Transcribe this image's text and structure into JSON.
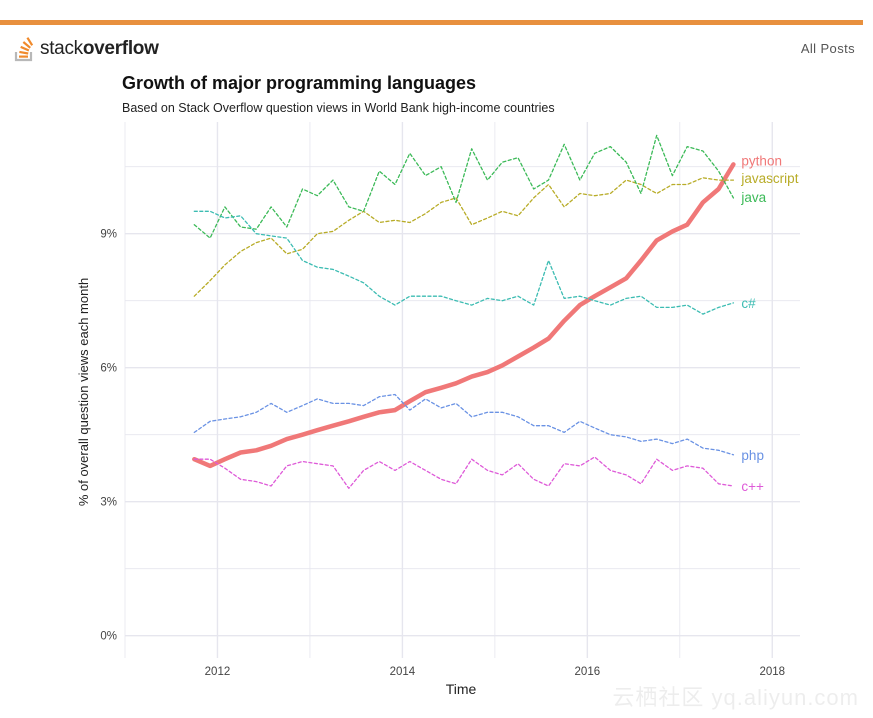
{
  "header": {
    "logo_text_light": "stack",
    "logo_text_bold": "overflow",
    "all_posts": "All Posts"
  },
  "watermark": "云栖社区 yq.aliyun.com",
  "chart_data": {
    "type": "line",
    "title": "Growth of major programming languages",
    "subtitle": "Based on Stack Overflow question views in World Bank high-income countries",
    "xlabel": "Time",
    "ylabel": "% of overall question views each month",
    "xlim": [
      2011.0,
      2018.3
    ],
    "ylim": [
      -0.5,
      11.5
    ],
    "xticks": [
      2012,
      2014,
      2016,
      2018
    ],
    "xtick_labels": [
      "2012",
      "2014",
      "2016",
      "2018"
    ],
    "yticks": [
      0,
      3,
      6,
      9
    ],
    "ytick_labels": [
      "0%",
      "3%",
      "6%",
      "9%"
    ],
    "grid": true,
    "legend": "direct labels at line ends (right)",
    "colors": {
      "python": "#f07878",
      "javascript": "#b8ac28",
      "java": "#3cba58",
      "csharp": "#3cbcb2",
      "php": "#6a92e4",
      "cpp": "#de5ad8",
      "grid": "#e6e6ee",
      "axis_text": "#444444"
    },
    "series": [
      {
        "name": "python",
        "label": "python",
        "color_key": "python",
        "x": [
          2011.75,
          2011.92,
          2012.08,
          2012.25,
          2012.42,
          2012.58,
          2012.75,
          2012.92,
          2013.08,
          2013.25,
          2013.42,
          2013.58,
          2013.75,
          2013.92,
          2014.08,
          2014.25,
          2014.42,
          2014.58,
          2014.75,
          2014.92,
          2015.08,
          2015.25,
          2015.42,
          2015.58,
          2015.75,
          2015.92,
          2016.08,
          2016.25,
          2016.42,
          2016.58,
          2016.75,
          2016.92,
          2017.08,
          2017.25,
          2017.42,
          2017.58
        ],
        "values": [
          3.95,
          3.8,
          3.95,
          4.1,
          4.15,
          4.25,
          4.4,
          4.5,
          4.6,
          4.7,
          4.8,
          4.9,
          5.0,
          5.05,
          5.25,
          5.45,
          5.55,
          5.65,
          5.8,
          5.9,
          6.05,
          6.25,
          6.45,
          6.65,
          7.05,
          7.4,
          7.6,
          7.8,
          8.0,
          8.4,
          8.85,
          9.05,
          9.2,
          9.7,
          10.0,
          10.55
        ]
      },
      {
        "name": "javascript",
        "label": "javascript",
        "color_key": "javascript",
        "x": [
          2011.75,
          2011.92,
          2012.08,
          2012.25,
          2012.42,
          2012.58,
          2012.75,
          2012.92,
          2013.08,
          2013.25,
          2013.42,
          2013.58,
          2013.75,
          2013.92,
          2014.08,
          2014.25,
          2014.42,
          2014.58,
          2014.75,
          2014.92,
          2015.08,
          2015.25,
          2015.42,
          2015.58,
          2015.75,
          2015.92,
          2016.08,
          2016.25,
          2016.42,
          2016.58,
          2016.75,
          2016.92,
          2017.08,
          2017.25,
          2017.42,
          2017.58
        ],
        "values": [
          7.6,
          7.95,
          8.3,
          8.6,
          8.8,
          8.9,
          8.55,
          8.65,
          9.0,
          9.05,
          9.3,
          9.5,
          9.25,
          9.3,
          9.25,
          9.45,
          9.7,
          9.8,
          9.2,
          9.35,
          9.5,
          9.4,
          9.8,
          10.1,
          9.6,
          9.9,
          9.85,
          9.9,
          10.2,
          10.1,
          9.9,
          10.1,
          10.1,
          10.25,
          10.2,
          10.2
        ]
      },
      {
        "name": "java",
        "label": "java",
        "color_key": "java",
        "x": [
          2011.75,
          2011.92,
          2012.08,
          2012.25,
          2012.42,
          2012.58,
          2012.75,
          2012.92,
          2013.08,
          2013.25,
          2013.42,
          2013.58,
          2013.75,
          2013.92,
          2014.08,
          2014.25,
          2014.42,
          2014.58,
          2014.75,
          2014.92,
          2015.08,
          2015.25,
          2015.42,
          2015.58,
          2015.75,
          2015.92,
          2016.08,
          2016.25,
          2016.42,
          2016.58,
          2016.75,
          2016.92,
          2017.08,
          2017.25,
          2017.42,
          2017.58
        ],
        "values": [
          9.2,
          8.9,
          9.6,
          9.15,
          9.1,
          9.6,
          9.15,
          10.0,
          9.85,
          10.2,
          9.6,
          9.5,
          10.4,
          10.1,
          10.8,
          10.3,
          10.5,
          9.7,
          10.9,
          10.2,
          10.6,
          10.7,
          10.0,
          10.2,
          11.0,
          10.2,
          10.8,
          10.95,
          10.6,
          9.9,
          11.2,
          10.3,
          10.95,
          10.85,
          10.4,
          9.8
        ]
      },
      {
        "name": "csharp",
        "label": "c#",
        "color_key": "csharp",
        "x": [
          2011.75,
          2011.92,
          2012.08,
          2012.25,
          2012.42,
          2012.58,
          2012.75,
          2012.92,
          2013.08,
          2013.25,
          2013.42,
          2013.58,
          2013.75,
          2013.92,
          2014.08,
          2014.25,
          2014.42,
          2014.58,
          2014.75,
          2014.92,
          2015.08,
          2015.25,
          2015.42,
          2015.58,
          2015.75,
          2015.92,
          2016.08,
          2016.25,
          2016.42,
          2016.58,
          2016.75,
          2016.92,
          2017.08,
          2017.25,
          2017.42,
          2017.58
        ],
        "values": [
          9.5,
          9.5,
          9.35,
          9.4,
          9.0,
          8.95,
          8.9,
          8.4,
          8.25,
          8.2,
          8.05,
          7.9,
          7.6,
          7.4,
          7.6,
          7.6,
          7.6,
          7.5,
          7.4,
          7.55,
          7.5,
          7.6,
          7.4,
          8.4,
          7.55,
          7.6,
          7.5,
          7.4,
          7.55,
          7.6,
          7.35,
          7.35,
          7.4,
          7.2,
          7.35,
          7.45
        ]
      },
      {
        "name": "php",
        "label": "php",
        "color_key": "php",
        "x": [
          2011.75,
          2011.92,
          2012.08,
          2012.25,
          2012.42,
          2012.58,
          2012.75,
          2012.92,
          2013.08,
          2013.25,
          2013.42,
          2013.58,
          2013.75,
          2013.92,
          2014.08,
          2014.25,
          2014.42,
          2014.58,
          2014.75,
          2014.92,
          2015.08,
          2015.25,
          2015.42,
          2015.58,
          2015.75,
          2015.92,
          2016.08,
          2016.25,
          2016.42,
          2016.58,
          2016.75,
          2016.92,
          2017.08,
          2017.25,
          2017.42,
          2017.58
        ],
        "values": [
          4.55,
          4.8,
          4.85,
          4.9,
          5.0,
          5.2,
          5.0,
          5.15,
          5.3,
          5.2,
          5.2,
          5.15,
          5.35,
          5.4,
          5.05,
          5.3,
          5.1,
          5.2,
          4.9,
          5.0,
          5.0,
          4.9,
          4.7,
          4.7,
          4.55,
          4.8,
          4.65,
          4.5,
          4.45,
          4.35,
          4.4,
          4.3,
          4.4,
          4.2,
          4.15,
          4.05
        ]
      },
      {
        "name": "cpp",
        "label": "c++",
        "color_key": "cpp",
        "x": [
          2011.75,
          2011.92,
          2012.08,
          2012.25,
          2012.42,
          2012.58,
          2012.75,
          2012.92,
          2013.08,
          2013.25,
          2013.42,
          2013.58,
          2013.75,
          2013.92,
          2014.08,
          2014.25,
          2014.42,
          2014.58,
          2014.75,
          2014.92,
          2015.08,
          2015.25,
          2015.42,
          2015.58,
          2015.75,
          2015.92,
          2016.08,
          2016.25,
          2016.42,
          2016.58,
          2016.75,
          2016.92,
          2017.08,
          2017.25,
          2017.42,
          2017.58
        ],
        "values": [
          3.95,
          3.95,
          3.75,
          3.5,
          3.45,
          3.35,
          3.8,
          3.9,
          3.85,
          3.8,
          3.3,
          3.7,
          3.9,
          3.7,
          3.9,
          3.7,
          3.5,
          3.4,
          3.95,
          3.7,
          3.6,
          3.85,
          3.5,
          3.35,
          3.85,
          3.8,
          4.0,
          3.7,
          3.6,
          3.4,
          3.95,
          3.7,
          3.8,
          3.75,
          3.4,
          3.35
        ]
      }
    ]
  }
}
